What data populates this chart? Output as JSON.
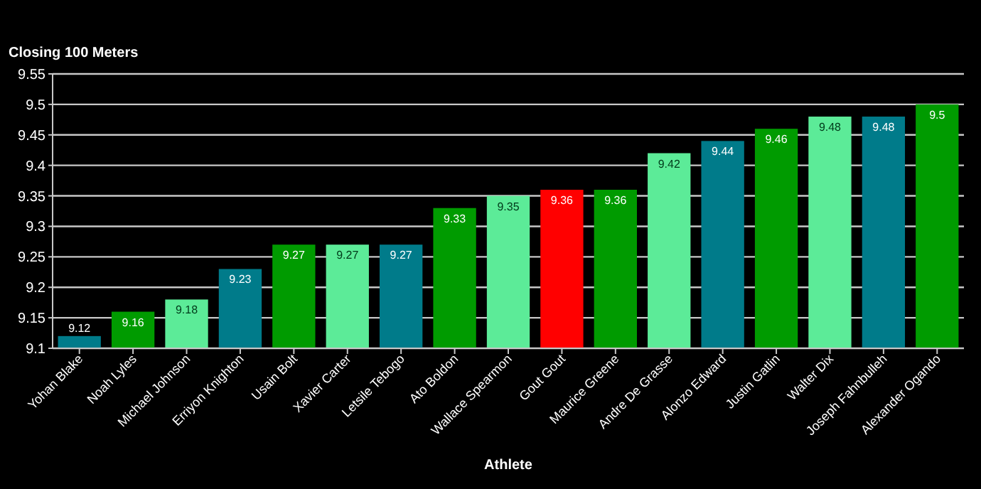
{
  "chart_data": {
    "type": "bar",
    "title": "Closing 100 Meters",
    "xlabel": "Athlete",
    "categories": [
      "Yohan Blake",
      "Noah Lyles",
      "Michael Johnson",
      "Erriyon Knighton",
      "Usain Bolt",
      "Xavier Carter",
      "Letsile Tebogo",
      "Ato Boldon",
      "Wallace Spearmon",
      "Gout Gout",
      "Maurice Greene",
      "Andre De Grasse",
      "Alonzo Edward",
      "Justin Gatlin",
      "Walter Dix",
      "Joseph Fahnbulleh",
      "Alexander Ogando"
    ],
    "values": [
      9.12,
      9.16,
      9.18,
      9.23,
      9.27,
      9.27,
      9.27,
      9.33,
      9.35,
      9.36,
      9.36,
      9.42,
      9.44,
      9.46,
      9.48,
      9.48,
      9.5
    ],
    "colors": [
      "#007b8a",
      "#009b00",
      "#5ceb98",
      "#007b8a",
      "#009b00",
      "#5ceb98",
      "#007b8a",
      "#009b00",
      "#5ceb98",
      "#ff0000",
      "#009b00",
      "#5ceb98",
      "#007b8a",
      "#009b00",
      "#5ceb98",
      "#007b8a",
      "#009b00"
    ],
    "ylim": [
      9.1,
      9.55
    ],
    "yticks": [
      9.1,
      9.15,
      9.2,
      9.25,
      9.3,
      9.35,
      9.4,
      9.45,
      9.5,
      9.55
    ],
    "grid": "y",
    "data_labels": true
  }
}
